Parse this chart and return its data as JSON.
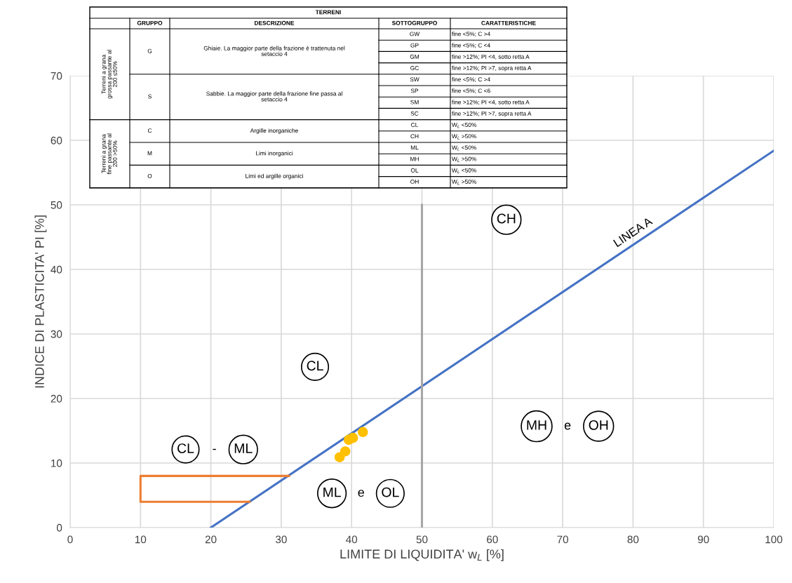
{
  "chart_data": {
    "type": "line",
    "xlabel": "LIMITE DI LIQUIDITA' w$_{L}$ [%]",
    "ylabel": "INDICE DI PLASTICITA' PI [%]",
    "xlim": [
      0,
      100
    ],
    "ylim": [
      0,
      70
    ],
    "xticks": [
      0,
      10,
      20,
      30,
      40,
      50,
      60,
      70,
      80,
      90,
      100
    ],
    "yticks": [
      0,
      10,
      20,
      30,
      40,
      50,
      60,
      70
    ],
    "grid": true,
    "legend": false,
    "series": [
      {
        "color": "#4472c4",
        "x": [
          20,
          100
        ],
        "values": [
          0,
          58.4
        ]
      },
      {
        "color": "#a6a6a6",
        "x": [
          50,
          50
        ],
        "values": [
          0,
          50
        ]
      },
      {
        "color": "#ed7d31",
        "x": [
          31.1,
          10,
          10,
          25.5
        ],
        "values": [
          8,
          8,
          4,
          4
        ]
      },
      {
        "type": "scatter",
        "color": "#ffc000",
        "x": [
          38.3,
          39.1,
          39.6,
          40.2,
          41.6
        ],
        "values": [
          10.9,
          11.8,
          13.6,
          13.9,
          14.8
        ]
      }
    ],
    "annotations": [
      {
        "text": "CH",
        "x": 62.0,
        "y": 47.7
      },
      {
        "text": "CL",
        "x": 34.8,
        "y": 24.9
      },
      {
        "text": "MH",
        "x": 66.3,
        "y": 15.7
      },
      {
        "text": "OH",
        "x": 75.1,
        "y": 15.7
      },
      {
        "text": "ML",
        "x": 37.2,
        "y": 5.3
      },
      {
        "text": "OL",
        "x": 45.5,
        "y": 5.3
      },
      {
        "text": "CL",
        "x": 16.4,
        "y": 12.1
      },
      {
        "text": "ML",
        "x": 24.6,
        "y": 12.1
      },
      "LINEA A",
      "e",
      "e",
      "-",
      "TERRENI",
      "GRUPPO",
      "DESCRIZIONE",
      "SOTTOGRUPPO",
      "CARATTERISTICHE",
      "Terreni a grana\ngrossa passante al\n200 ≤50%",
      "Terreni a grana\nfine passante al\n200 >50%",
      "G",
      "S",
      "C",
      "M",
      "O",
      "Ghiaie. La maggior parte della frazione è trattenuta nel\nsetaccio 4",
      "Sabbie. La maggior parte della frazione fine passa al\nsetaccio 4",
      "Argille inorganiche",
      "Limi inorganici",
      "Limi ed argille organici",
      "GW",
      "GP",
      "GM",
      "GC",
      "SW",
      "SP",
      "SM",
      "SC",
      "CL",
      "CH",
      "ML",
      "MH",
      "OL",
      "OH",
      "fine <5%; C >4",
      "fine <5%; C <4",
      "fine >12%; PI <4, sotto retta A",
      "fine >12%; PI >7, sopra retta A",
      "fine <5%; C >4",
      "fine <5%; C <6",
      "fine >12%; PI <4, sotto retta A",
      "fine >12%; PI >7, sopra retta A",
      "W$_{L}$ <50%",
      "W$_{L}$ >50%",
      "W$_{L}$ <50%",
      "W$_{L}$ >50%",
      "W$_{L}$ <50%",
      "W$_{L}$ >50%"
    ]
  }
}
